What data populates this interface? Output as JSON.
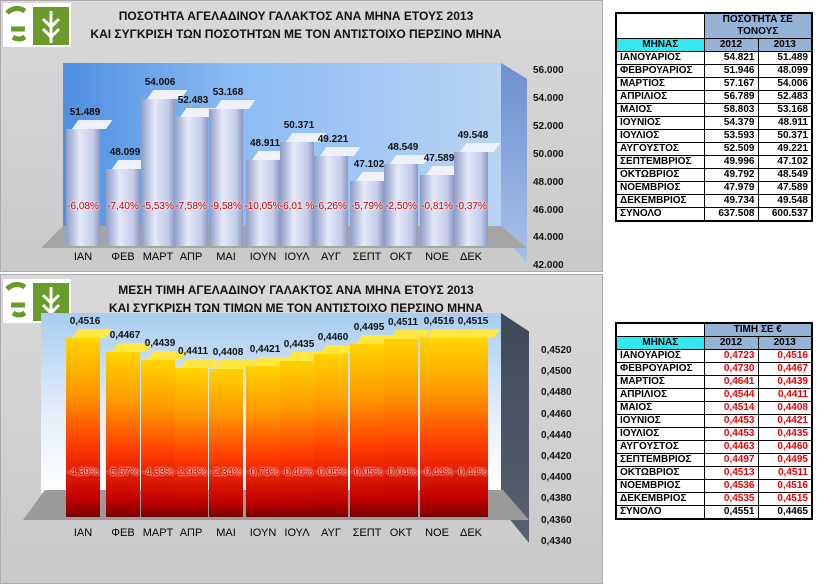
{
  "quantity": {
    "title_line1": "ΠΟΣΟΤΗΤΑ ΑΓΕΛΑΔΙΝΟΥ ΓΑΛΑΚΤΟΣ ΑΝΑ ΜΗΝΑ ΕΤΟΥΣ 2013",
    "title_line2": "ΚΑΙ ΣΥΓΚΡΙΣΗ ΤΩΝ ΠΟΣΟΤΗΤΩΝ ΜΕ ΤΟΝ ΑΝΤΙΣΤΟΙΧΟ ΠΕΡΣΙΝΟ ΜΗΝΑ",
    "table": {
      "group_header": "ΠΟΣΟΤΗΤΑ ΣΕ ΤΟΝΟΥΣ",
      "month_header": "ΜΗΝΑΣ",
      "year1": "2012",
      "year2": "2013",
      "rows": [
        [
          "ΙΑΝΟΥΑΡΙΟΣ",
          "54.821",
          "51.489"
        ],
        [
          "ΦΕΒΡΟΥΑΡΙΟΣ",
          "51.946",
          "48.099"
        ],
        [
          "ΜΑΡΤΙΟΣ",
          "57.167",
          "54.006"
        ],
        [
          "ΑΠΡΙΛΙΟΣ",
          "56.789",
          "52.483"
        ],
        [
          "ΜΑΙΟΣ",
          "58.803",
          "53.168"
        ],
        [
          "ΙΟΥΝΙΟΣ",
          "54.379",
          "48.911"
        ],
        [
          "ΙΟΥΛΙΟΣ",
          "53.593",
          "50.371"
        ],
        [
          "ΑΥΓΟΥΣΤΟΣ",
          "52.509",
          "49.221"
        ],
        [
          "ΣΕΠΤΕΜΒΡΙΟΣ",
          "49.996",
          "47.102"
        ],
        [
          "ΟΚΤΩΒΡΙΟΣ",
          "49.792",
          "48.549"
        ],
        [
          "ΝΟΕΜΒΡΙΟΣ",
          "47.979",
          "47.589"
        ],
        [
          "ΔΕΚΕΜΒΡΙΟΣ",
          "49.734",
          "49.548"
        ]
      ],
      "total": [
        "ΣΥΝΟΛΟ",
        "637.508",
        "600.537"
      ]
    }
  },
  "price": {
    "title_line1": "ΜΕΣΗ ΤΙΜΗ  ΑΓΕΛΑΔΙΝΟΥ ΓΑΛΑΚΤΟΣ ΑΝΑ  ΜΗΝΑ ΕΤΟΥΣ 2013",
    "title_line2": "ΚΑΙ ΣΥΓΚΡΙΣΗ ΤΩΝ ΤΙΜΩΝ ΜΕ ΤΟΝ ΑΝΤΙΣΤΟΙΧΟ ΠΕΡΣΙΝΟ ΜΗΝΑ",
    "table": {
      "group_header": "ΤΙΜΗ ΣΕ €",
      "month_header": "ΜΗΝΑΣ",
      "year1": "2012",
      "year2": "2013",
      "rows": [
        [
          "ΙΑΝΟΥΑΡΙΟΣ",
          "0,4723",
          "0,4516"
        ],
        [
          "ΦΕΒΡΟΥΑΡΙΟΣ",
          "0,4730",
          "0,4467"
        ],
        [
          "ΜΑΡΤΙΟΣ",
          "0,4641",
          "0,4439"
        ],
        [
          "ΑΠΡΙΛΙΟΣ",
          "0,4544",
          "0,4411"
        ],
        [
          "ΜΑΙΟΣ",
          "0,4514",
          "0,4408"
        ],
        [
          "ΙΟΥΝΙΟΣ",
          "0,4453",
          "0,4421"
        ],
        [
          "ΙΟΥΛΙΟΣ",
          "0,4453",
          "0,4435"
        ],
        [
          "ΑΥΓΟΥΣΤΟΣ",
          "0,4463",
          "0,4460"
        ],
        [
          "ΣΕΠΤΕΜΒΡΙΟΣ",
          "0,4497",
          "0,4495"
        ],
        [
          "ΟΚΤΩΒΡΙΟΣ",
          "0,4513",
          "0,4511"
        ],
        [
          "ΝΟΕΜΒΡΙΟΣ",
          "0,4536",
          "0,4516"
        ],
        [
          "ΔΕΚΕΜΒΡΙΟΣ",
          "0,4535",
          "0,4515"
        ]
      ],
      "total": [
        "ΣΥΝΟΛΟ",
        "0,4551",
        "0,4465"
      ]
    }
  },
  "chart_data": [
    {
      "type": "bar",
      "title": "ΠΟΣΟΤΗΤΑ ΑΓΕΛΑΔΙΝΟΥ ΓΑΛΑΚΤΟΣ ΑΝΑ ΜΗΝΑ ΕΤΟΥΣ 2013",
      "categories": [
        "ΙΑΝ",
        "ΦΕΒ",
        "ΜΑΡΤ",
        "ΑΠΡ",
        "ΜΑΙ",
        "ΙΟΥΝ",
        "ΙΟΥΛ",
        "ΑΥΓ",
        "ΣΕΠΤ",
        "ΟΚΤ",
        "ΝΟΕ",
        "ΔΕΚ"
      ],
      "values": [
        51489,
        48099,
        54006,
        52483,
        53168,
        48911,
        50371,
        49221,
        47102,
        48549,
        47589,
        49548
      ],
      "value_labels": [
        "51.489",
        "48.099",
        "54.006",
        "52.483",
        "53.168",
        "48.911",
        "50.371",
        "49.221",
        "47.102",
        "48.549",
        "47.589",
        "49.548"
      ],
      "change_labels": [
        "-6,08%",
        "-7,40%",
        "-5,53%",
        "-7,58%",
        "-9,58%",
        "-10,05%",
        "-6,01 %",
        "-6,26%",
        "-5,79%",
        "-2,50%",
        "-0,81%",
        "-0,37%"
      ],
      "yticks": [
        "56.000",
        "54.000",
        "52.000",
        "50.000",
        "48.000",
        "46.000",
        "44.000",
        "42.000"
      ],
      "ylim": [
        42000,
        56000
      ],
      "color": "#c9d0ee"
    },
    {
      "type": "bar",
      "title": "ΜΕΣΗ ΤΙΜΗ ΑΓΕΛΑΔΙΝΟΥ ΓΑΛΑΚΤΟΣ ΑΝΑ ΜΗΝΑ ΕΤΟΥΣ 2013",
      "categories": [
        "ΙΑΝ",
        "ΦΕΒ",
        "ΜΑΡΤ",
        "ΑΠΡ",
        "ΜΑΙ",
        "ΙΟΥΝ",
        "ΙΟΥΛ",
        "ΑΥΓ",
        "ΣΕΠΤ",
        "ΟΚΤ",
        "ΝΟΕ",
        "ΔΕΚ"
      ],
      "values": [
        0.4516,
        0.4467,
        0.4439,
        0.4411,
        0.4408,
        0.4421,
        0.4435,
        0.446,
        0.4495,
        0.4511,
        0.4516,
        0.4515
      ],
      "value_labels": [
        "0,4516",
        "0,4467",
        "0,4439",
        "0,4411",
        "0,4408",
        "0,4421",
        "0,4435",
        "0,4460",
        "0,4495",
        "0,4511",
        "0,4516",
        "0,4515"
      ],
      "change_labels": [
        "-4,39%",
        "-5,57%",
        "-4,33%",
        "-2,93%",
        "-2,34%",
        "-0,73%",
        "-0,40%",
        "-0,05%",
        "-0,05%",
        "-0,04%",
        "-0,44%",
        "-0,44%"
      ],
      "yticks": [
        "0,4520",
        "0,4500",
        "0,4480",
        "0,4460",
        "0,4440",
        "0,4420",
        "0,4400",
        "0,4380",
        "0,4360",
        "0,4340"
      ],
      "ylim": [
        0.434,
        0.452
      ],
      "color": "#ff8000"
    }
  ]
}
